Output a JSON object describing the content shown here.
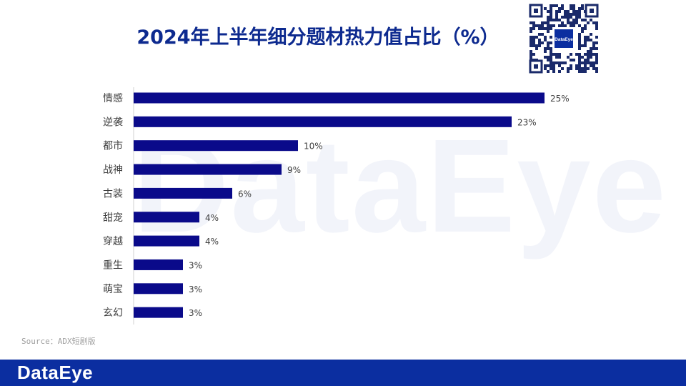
{
  "watermark": "DataEye",
  "qr_label": "DataEye",
  "source": "Source：ADX短剧版",
  "footer": {
    "logo": "DataEye"
  },
  "colors": {
    "bar": "#0a0a8a",
    "title": "#0d2a8f",
    "footer": "#0b2ea0"
  },
  "chart_data": {
    "type": "bar",
    "orientation": "horizontal",
    "title": "2024年上半年细分题材热力值占比（%）",
    "categories": [
      "情感",
      "逆袭",
      "都市",
      "战神",
      "古装",
      "甜宠",
      "穿越",
      "重生",
      "萌宝",
      "玄幻"
    ],
    "values": [
      25,
      23,
      10,
      9,
      6,
      4,
      4,
      3,
      3,
      3
    ],
    "value_labels": [
      "25%",
      "23%",
      "10%",
      "9%",
      "6%",
      "4%",
      "4%",
      "3%",
      "3%",
      "3%"
    ],
    "grid": false,
    "legend": "none"
  }
}
